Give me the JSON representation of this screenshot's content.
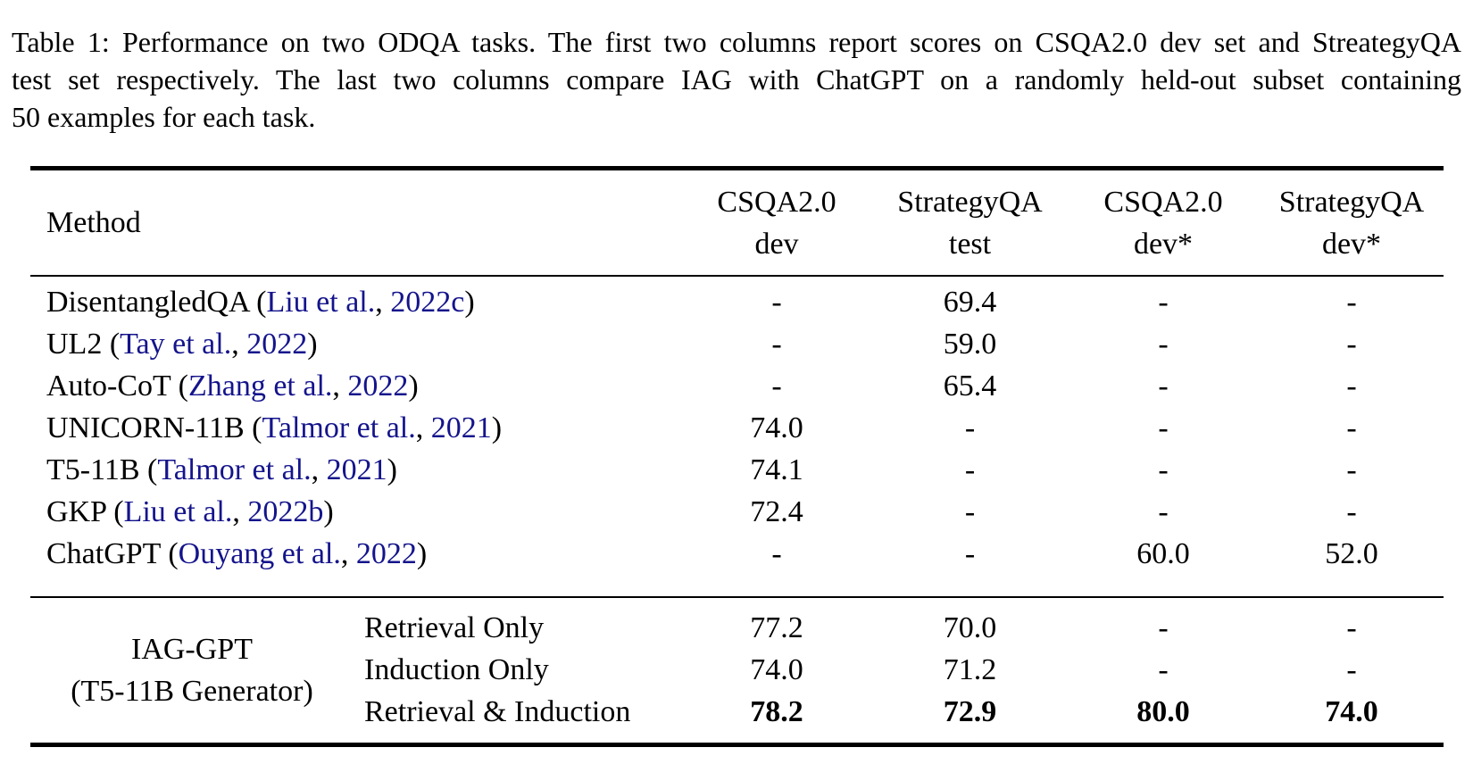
{
  "caption": {
    "lines": [
      "Table 1: Performance on two ODQA tasks. The first two columns report scores on CSQA2.0 dev set and StreategyQA",
      "test set respectively. The last two columns compare IAG with ChatGPT on a randomly held-out subset containing",
      "50 examples for each task."
    ]
  },
  "table": {
    "header": {
      "method_label": "Method",
      "columns": [
        {
          "line1": "CSQA2.0",
          "line2": "dev"
        },
        {
          "line1": "StrategyQA",
          "line2": "test"
        },
        {
          "line1": "CSQA2.0",
          "line2": "dev*"
        },
        {
          "line1": "StrategyQA",
          "line2": "dev*"
        }
      ]
    },
    "baseline_rows": [
      {
        "prefix": "DisentangledQA (",
        "authors": "Liu et al.",
        "sep": ", ",
        "year": "2022c",
        "suffix": ")",
        "values": [
          "-",
          "69.4",
          "-",
          "-"
        ]
      },
      {
        "prefix": "UL2 (",
        "authors": "Tay et al.",
        "sep": ", ",
        "year": "2022",
        "suffix": ")",
        "values": [
          "-",
          "59.0",
          "-",
          "-"
        ]
      },
      {
        "prefix": "Auto-CoT (",
        "authors": "Zhang et al.",
        "sep": ", ",
        "year": "2022",
        "suffix": ")",
        "values": [
          "-",
          "65.4",
          "-",
          "-"
        ]
      },
      {
        "prefix": "UNICORN-11B (",
        "authors": "Talmor et al.",
        "sep": ", ",
        "year": "2021",
        "suffix": ")",
        "values": [
          "74.0",
          "-",
          "-",
          "-"
        ]
      },
      {
        "prefix": "T5-11B (",
        "authors": "Talmor et al.",
        "sep": ", ",
        "year": "2021",
        "suffix": ")",
        "values": [
          "74.1",
          "-",
          "-",
          "-"
        ]
      },
      {
        "prefix": "GKP (",
        "authors": "Liu et al.",
        "sep": ", ",
        "year": "2022b",
        "suffix": ")",
        "values": [
          "72.4",
          "-",
          "-",
          "-"
        ]
      },
      {
        "prefix": "ChatGPT (",
        "authors": "Ouyang et al.",
        "sep": ", ",
        "year": "2022",
        "suffix": ")",
        "values": [
          "-",
          "-",
          "60.0",
          "52.0"
        ]
      }
    ],
    "iag_section": {
      "group_label_line1": "IAG-GPT",
      "group_label_line2": "(T5-11B Generator)",
      "rows": [
        {
          "variant": "Retrieval Only",
          "values": [
            "77.2",
            "70.0",
            "-",
            "-"
          ]
        },
        {
          "variant": "Induction Only",
          "values": [
            "74.0",
            "71.2",
            "-",
            "-"
          ]
        },
        {
          "variant": "Retrieval & Induction",
          "values": [
            "78.2",
            "72.9",
            "80.0",
            "74.0"
          ]
        }
      ]
    }
  },
  "colors": {
    "citation": "#14148c",
    "text": "#000000",
    "background": "#ffffff"
  }
}
